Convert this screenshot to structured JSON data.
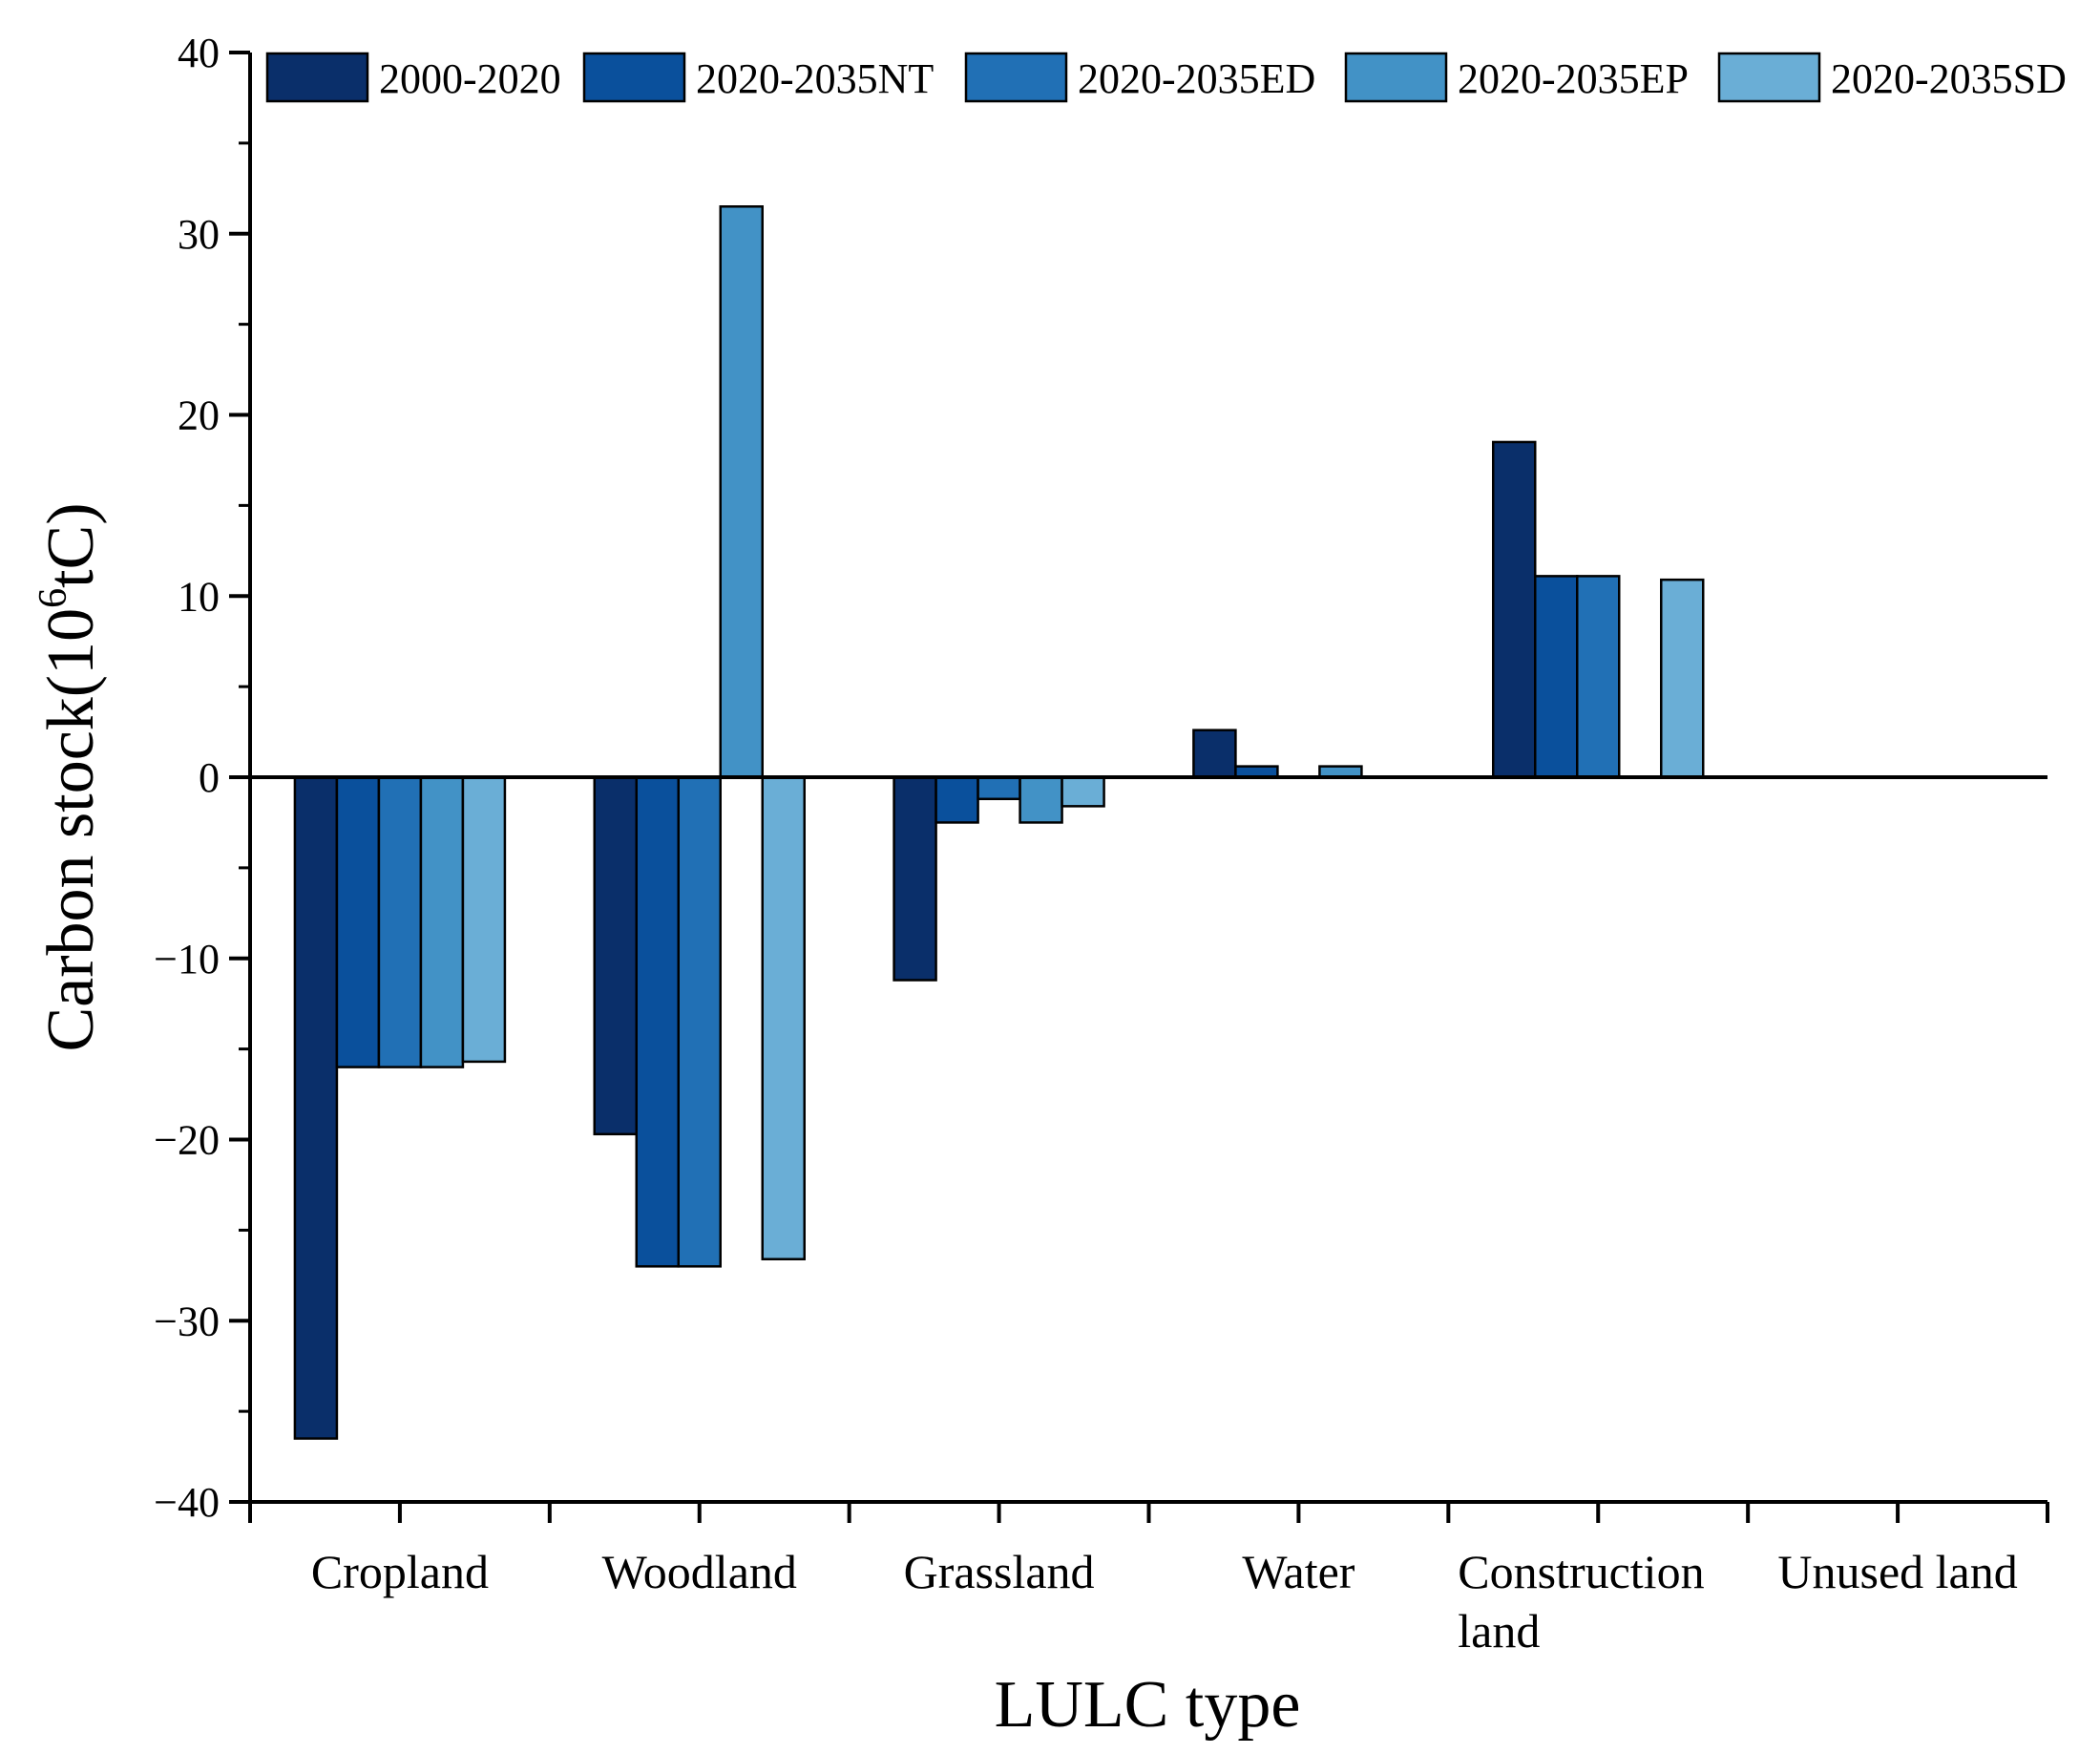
{
  "chart_data": {
    "type": "bar",
    "title": "",
    "xlabel": "LULC type",
    "ylabel_main": "Carbon stock(10",
    "ylabel_sup": "6",
    "ylabel_end": "tC)",
    "ylim": [
      -40,
      40
    ],
    "yticks": [
      -40,
      -30,
      -20,
      -10,
      0,
      10,
      20,
      30,
      40
    ],
    "ytick_labels": [
      "−40",
      "−30",
      "−20",
      "−10",
      "0",
      "10",
      "20",
      "30",
      "40"
    ],
    "categories": [
      "Cropland",
      "Woodland",
      "Grassland",
      "Water",
      "Construction land",
      "Unused land"
    ],
    "category_lines": [
      [
        "Cropland"
      ],
      [
        "Woodland"
      ],
      [
        "Grassland"
      ],
      [
        "Water"
      ],
      [
        "Construction",
        "land"
      ],
      [
        "Unused land"
      ]
    ],
    "legend_position": "top",
    "series": [
      {
        "name": "2000-2020",
        "color": "#0a2f6a",
        "values": [
          -36.5,
          -19.7,
          -11.2,
          2.6,
          18.5,
          0
        ]
      },
      {
        "name": "2020-2035NT",
        "color": "#0a509c",
        "values": [
          -16.0,
          -27.0,
          -2.5,
          0.6,
          11.1,
          0
        ]
      },
      {
        "name": "2020-2035ED",
        "color": "#2170b5",
        "values": [
          -16.0,
          -27.0,
          -1.2,
          0,
          11.1,
          0
        ]
      },
      {
        "name": "2020-2035EP",
        "color": "#4292c6",
        "values": [
          -16.0,
          31.5,
          -2.5,
          0.6,
          0,
          0
        ]
      },
      {
        "name": "2020-2035SD",
        "color": "#6aaed6",
        "values": [
          -15.7,
          -26.6,
          -1.6,
          0,
          10.9,
          0
        ]
      }
    ]
  }
}
